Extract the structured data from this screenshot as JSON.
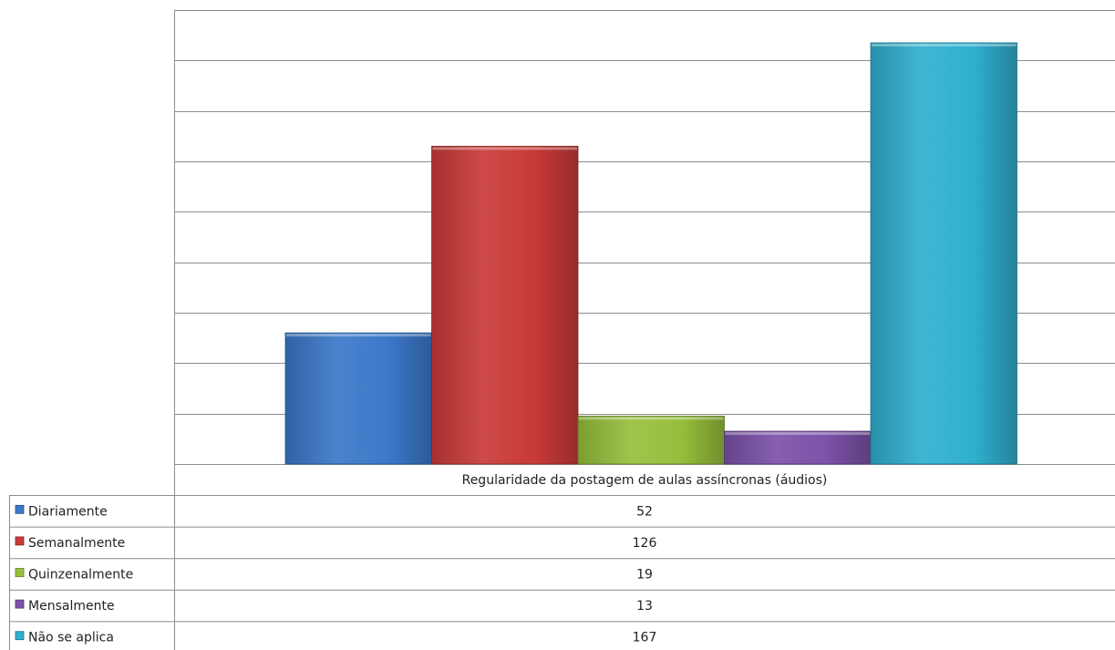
{
  "chart_data": {
    "type": "bar",
    "categories": [
      "Regularidade da postagem de aulas assíncronas (áudios)"
    ],
    "series": [
      {
        "name": "Diariamente",
        "values": [
          52
        ],
        "color": "#3b78c9"
      },
      {
        "name": "Semanalmente",
        "values": [
          126
        ],
        "color": "#c93a38"
      },
      {
        "name": "Quinzenalmente",
        "values": [
          19
        ],
        "color": "#97bf3c"
      },
      {
        "name": "Mensalmente",
        "values": [
          13
        ],
        "color": "#7b52a8"
      },
      {
        "name": "Não se aplica",
        "values": [
          167
        ],
        "color": "#2fb0cf"
      }
    ],
    "ylim": [
      0,
      180
    ],
    "y_gridline_step": 20,
    "y_tick_labels_shown": false,
    "grid": true,
    "legend": "data-table-left"
  }
}
